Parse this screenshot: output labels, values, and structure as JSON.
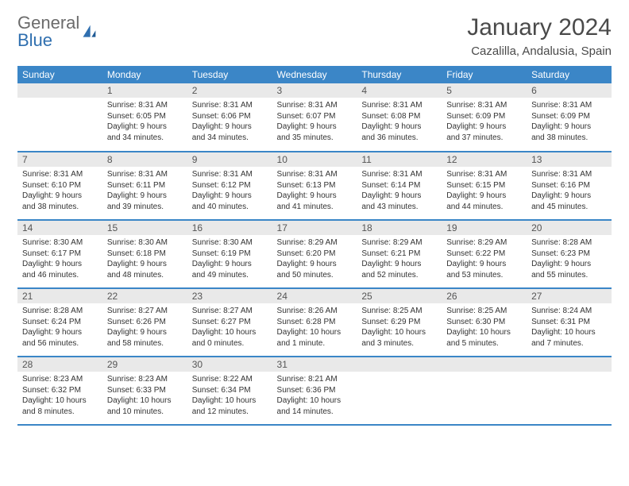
{
  "logo": {
    "top": "General",
    "bottom": "Blue"
  },
  "title": "January 2024",
  "location": "Cazalilla, Andalusia, Spain",
  "colors": {
    "header_bg": "#3b86c7",
    "header_text": "#ffffff",
    "daynum_bg": "#e9e9e9",
    "row_divider": "#3b86c7",
    "logo_gray": "#6b6b6b",
    "logo_blue": "#2f6faf"
  },
  "weekdays": [
    "Sunday",
    "Monday",
    "Tuesday",
    "Wednesday",
    "Thursday",
    "Friday",
    "Saturday"
  ],
  "weeks": [
    [
      {
        "n": "",
        "lines": []
      },
      {
        "n": "1",
        "lines": [
          "Sunrise: 8:31 AM",
          "Sunset: 6:05 PM",
          "Daylight: 9 hours",
          "and 34 minutes."
        ]
      },
      {
        "n": "2",
        "lines": [
          "Sunrise: 8:31 AM",
          "Sunset: 6:06 PM",
          "Daylight: 9 hours",
          "and 34 minutes."
        ]
      },
      {
        "n": "3",
        "lines": [
          "Sunrise: 8:31 AM",
          "Sunset: 6:07 PM",
          "Daylight: 9 hours",
          "and 35 minutes."
        ]
      },
      {
        "n": "4",
        "lines": [
          "Sunrise: 8:31 AM",
          "Sunset: 6:08 PM",
          "Daylight: 9 hours",
          "and 36 minutes."
        ]
      },
      {
        "n": "5",
        "lines": [
          "Sunrise: 8:31 AM",
          "Sunset: 6:09 PM",
          "Daylight: 9 hours",
          "and 37 minutes."
        ]
      },
      {
        "n": "6",
        "lines": [
          "Sunrise: 8:31 AM",
          "Sunset: 6:09 PM",
          "Daylight: 9 hours",
          "and 38 minutes."
        ]
      }
    ],
    [
      {
        "n": "7",
        "lines": [
          "Sunrise: 8:31 AM",
          "Sunset: 6:10 PM",
          "Daylight: 9 hours",
          "and 38 minutes."
        ]
      },
      {
        "n": "8",
        "lines": [
          "Sunrise: 8:31 AM",
          "Sunset: 6:11 PM",
          "Daylight: 9 hours",
          "and 39 minutes."
        ]
      },
      {
        "n": "9",
        "lines": [
          "Sunrise: 8:31 AM",
          "Sunset: 6:12 PM",
          "Daylight: 9 hours",
          "and 40 minutes."
        ]
      },
      {
        "n": "10",
        "lines": [
          "Sunrise: 8:31 AM",
          "Sunset: 6:13 PM",
          "Daylight: 9 hours",
          "and 41 minutes."
        ]
      },
      {
        "n": "11",
        "lines": [
          "Sunrise: 8:31 AM",
          "Sunset: 6:14 PM",
          "Daylight: 9 hours",
          "and 43 minutes."
        ]
      },
      {
        "n": "12",
        "lines": [
          "Sunrise: 8:31 AM",
          "Sunset: 6:15 PM",
          "Daylight: 9 hours",
          "and 44 minutes."
        ]
      },
      {
        "n": "13",
        "lines": [
          "Sunrise: 8:31 AM",
          "Sunset: 6:16 PM",
          "Daylight: 9 hours",
          "and 45 minutes."
        ]
      }
    ],
    [
      {
        "n": "14",
        "lines": [
          "Sunrise: 8:30 AM",
          "Sunset: 6:17 PM",
          "Daylight: 9 hours",
          "and 46 minutes."
        ]
      },
      {
        "n": "15",
        "lines": [
          "Sunrise: 8:30 AM",
          "Sunset: 6:18 PM",
          "Daylight: 9 hours",
          "and 48 minutes."
        ]
      },
      {
        "n": "16",
        "lines": [
          "Sunrise: 8:30 AM",
          "Sunset: 6:19 PM",
          "Daylight: 9 hours",
          "and 49 minutes."
        ]
      },
      {
        "n": "17",
        "lines": [
          "Sunrise: 8:29 AM",
          "Sunset: 6:20 PM",
          "Daylight: 9 hours",
          "and 50 minutes."
        ]
      },
      {
        "n": "18",
        "lines": [
          "Sunrise: 8:29 AM",
          "Sunset: 6:21 PM",
          "Daylight: 9 hours",
          "and 52 minutes."
        ]
      },
      {
        "n": "19",
        "lines": [
          "Sunrise: 8:29 AM",
          "Sunset: 6:22 PM",
          "Daylight: 9 hours",
          "and 53 minutes."
        ]
      },
      {
        "n": "20",
        "lines": [
          "Sunrise: 8:28 AM",
          "Sunset: 6:23 PM",
          "Daylight: 9 hours",
          "and 55 minutes."
        ]
      }
    ],
    [
      {
        "n": "21",
        "lines": [
          "Sunrise: 8:28 AM",
          "Sunset: 6:24 PM",
          "Daylight: 9 hours",
          "and 56 minutes."
        ]
      },
      {
        "n": "22",
        "lines": [
          "Sunrise: 8:27 AM",
          "Sunset: 6:26 PM",
          "Daylight: 9 hours",
          "and 58 minutes."
        ]
      },
      {
        "n": "23",
        "lines": [
          "Sunrise: 8:27 AM",
          "Sunset: 6:27 PM",
          "Daylight: 10 hours",
          "and 0 minutes."
        ]
      },
      {
        "n": "24",
        "lines": [
          "Sunrise: 8:26 AM",
          "Sunset: 6:28 PM",
          "Daylight: 10 hours",
          "and 1 minute."
        ]
      },
      {
        "n": "25",
        "lines": [
          "Sunrise: 8:25 AM",
          "Sunset: 6:29 PM",
          "Daylight: 10 hours",
          "and 3 minutes."
        ]
      },
      {
        "n": "26",
        "lines": [
          "Sunrise: 8:25 AM",
          "Sunset: 6:30 PM",
          "Daylight: 10 hours",
          "and 5 minutes."
        ]
      },
      {
        "n": "27",
        "lines": [
          "Sunrise: 8:24 AM",
          "Sunset: 6:31 PM",
          "Daylight: 10 hours",
          "and 7 minutes."
        ]
      }
    ],
    [
      {
        "n": "28",
        "lines": [
          "Sunrise: 8:23 AM",
          "Sunset: 6:32 PM",
          "Daylight: 10 hours",
          "and 8 minutes."
        ]
      },
      {
        "n": "29",
        "lines": [
          "Sunrise: 8:23 AM",
          "Sunset: 6:33 PM",
          "Daylight: 10 hours",
          "and 10 minutes."
        ]
      },
      {
        "n": "30",
        "lines": [
          "Sunrise: 8:22 AM",
          "Sunset: 6:34 PM",
          "Daylight: 10 hours",
          "and 12 minutes."
        ]
      },
      {
        "n": "31",
        "lines": [
          "Sunrise: 8:21 AM",
          "Sunset: 6:36 PM",
          "Daylight: 10 hours",
          "and 14 minutes."
        ]
      },
      {
        "n": "",
        "lines": []
      },
      {
        "n": "",
        "lines": []
      },
      {
        "n": "",
        "lines": []
      }
    ]
  ]
}
